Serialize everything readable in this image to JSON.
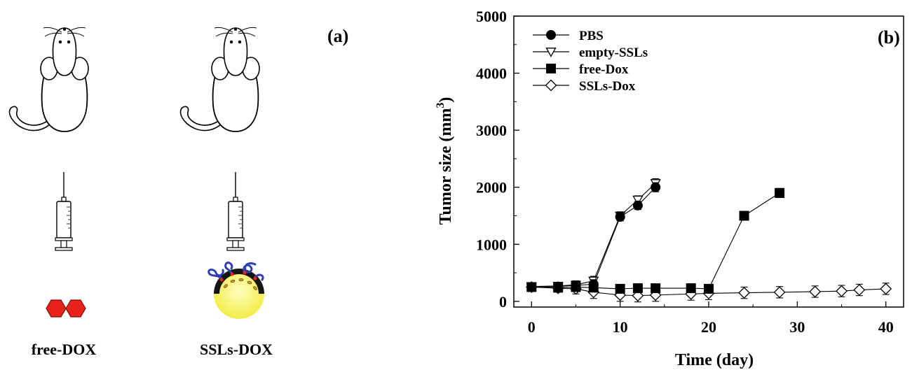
{
  "panel_a": {
    "panel_label": "(a)",
    "groups": [
      {
        "label": "free-DOX",
        "agent_icon": "red-hexagon-molecule-icon"
      },
      {
        "label": "SSLs-DOX",
        "agent_icon": "liposome-icon"
      }
    ],
    "colors": {
      "molecule": "#e8231a",
      "liposome_core": "#f5f04a",
      "peg_chain": "#2f3fb0",
      "lipid_shell": "#111111"
    }
  },
  "chart_data": {
    "type": "line",
    "panel_label": "(b)",
    "title": "",
    "xlabel": "Time (day)",
    "ylabel": "Tumor size (mm",
    "ylabel_sup": "3",
    "ylabel_close": ")",
    "xlim": [
      -2,
      42
    ],
    "ylim": [
      -100,
      5000
    ],
    "xticks": [
      0,
      10,
      20,
      30,
      40
    ],
    "yticks": [
      0,
      1000,
      2000,
      3000,
      4000,
      5000
    ],
    "legend_position": "top-left",
    "series": [
      {
        "name": "PBS",
        "marker": "filled-circle",
        "x": [
          0,
          3,
          5,
          7,
          10,
          12,
          14
        ],
        "y": [
          250,
          260,
          280,
          300,
          1480,
          1680,
          2000
        ],
        "err": [
          60,
          60,
          70,
          80,
          70,
          70,
          80
        ]
      },
      {
        "name": "empty-SSLs",
        "marker": "open-triangle-down",
        "x": [
          0,
          3,
          5,
          7,
          10,
          12,
          14
        ],
        "y": [
          260,
          270,
          290,
          360,
          1500,
          1780,
          2070
        ],
        "err": [
          60,
          60,
          70,
          80,
          70,
          70,
          80
        ]
      },
      {
        "name": "free-Dox",
        "marker": "filled-square",
        "x": [
          0,
          3,
          5,
          7,
          10,
          12,
          14,
          18,
          20,
          24,
          28
        ],
        "y": [
          250,
          240,
          250,
          240,
          220,
          230,
          230,
          230,
          220,
          1500,
          1900
        ],
        "err": [
          60,
          60,
          60,
          60,
          60,
          60,
          60,
          60,
          60,
          70,
          80
        ]
      },
      {
        "name": "SSLs-Dox",
        "marker": "open-diamond",
        "x": [
          0,
          3,
          5,
          7,
          10,
          12,
          14,
          18,
          20,
          24,
          28,
          32,
          35,
          37,
          40
        ],
        "y": [
          250,
          230,
          220,
          160,
          110,
          100,
          110,
          130,
          140,
          150,
          160,
          170,
          180,
          200,
          220
        ],
        "err": [
          60,
          70,
          90,
          110,
          110,
          110,
          110,
          110,
          110,
          100,
          100,
          100,
          100,
          100,
          100
        ]
      }
    ]
  }
}
